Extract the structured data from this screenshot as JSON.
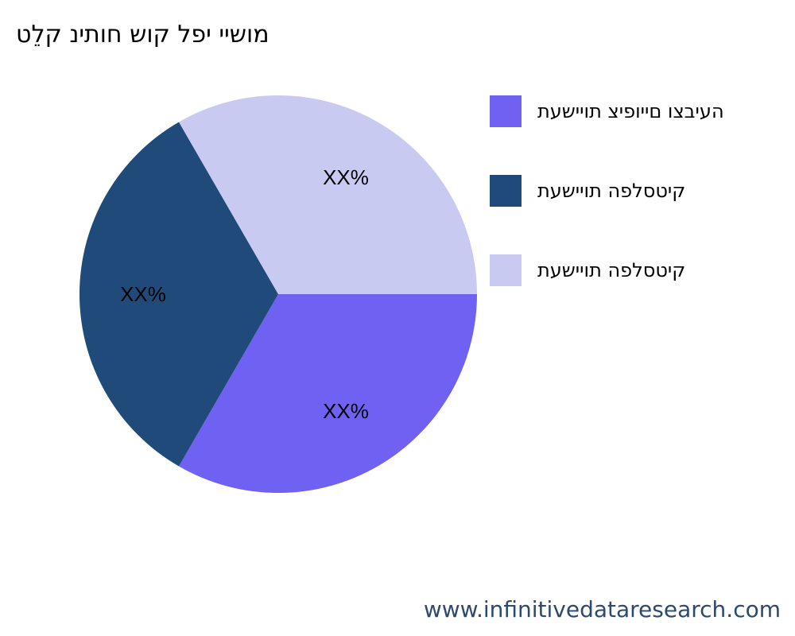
{
  "chart_data": {
    "type": "pie",
    "title": "מושיי יפל קוש חותינ קלֵט",
    "slices": [
      {
        "label": "העיבצו םייופיצ תויישעת",
        "value": 33.33,
        "value_label": "XX%",
        "color": "#6f61f2"
      },
      {
        "label": "קיטסלפה תויישעת",
        "value": 33.33,
        "value_label": "XX%",
        "color": "#1f4a7a"
      },
      {
        "label": "קיטסלפה תויישעת",
        "value": 33.33,
        "value_label": "XX%",
        "color": "#c9caf1"
      }
    ],
    "legend_position": "right"
  },
  "watermark": "www.infinitivedataresearch.com"
}
